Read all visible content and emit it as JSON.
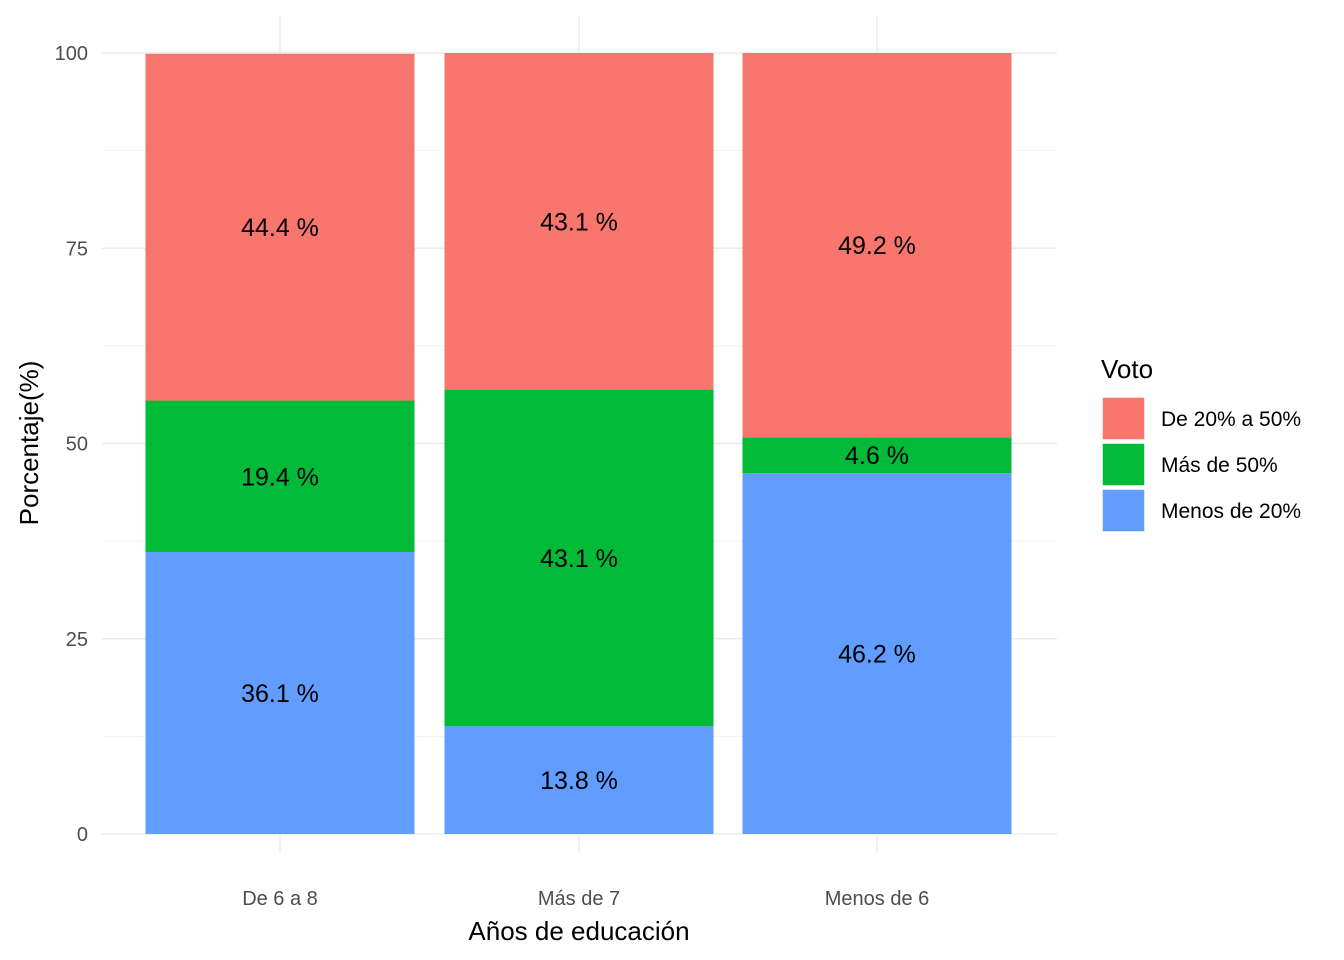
{
  "chart_data": {
    "type": "bar",
    "stacked": true,
    "title": "",
    "xlabel": "Años de educación",
    "ylabel": "Porcentaje(%)",
    "ylim": [
      0,
      100
    ],
    "yticks": [
      0,
      25,
      50,
      75,
      100
    ],
    "grid": true,
    "legend_position": "right",
    "legend_title": "Voto",
    "categories": [
      "De 6 a 8",
      "Más de 7",
      "Menos de 6"
    ],
    "series": [
      {
        "name": "Menos de 20%",
        "color": "#619CFF",
        "values": [
          36.1,
          13.8,
          46.2
        ],
        "labels": [
          "36.1 %",
          "13.8 %",
          "46.2 %"
        ]
      },
      {
        "name": "Más de 50%",
        "color": "#00BA38",
        "values": [
          19.4,
          43.1,
          4.6
        ],
        "labels": [
          "19.4 %",
          "43.1 %",
          "4.6 %"
        ]
      },
      {
        "name": "De 20% a 50%",
        "color": "#F8766D",
        "values": [
          44.4,
          43.1,
          49.2
        ],
        "labels": [
          "44.4 %",
          "43.1 %",
          "49.2 %"
        ]
      }
    ],
    "legend_order": [
      "De 20% a 50%",
      "Más de 50%",
      "Menos de 20%"
    ]
  }
}
